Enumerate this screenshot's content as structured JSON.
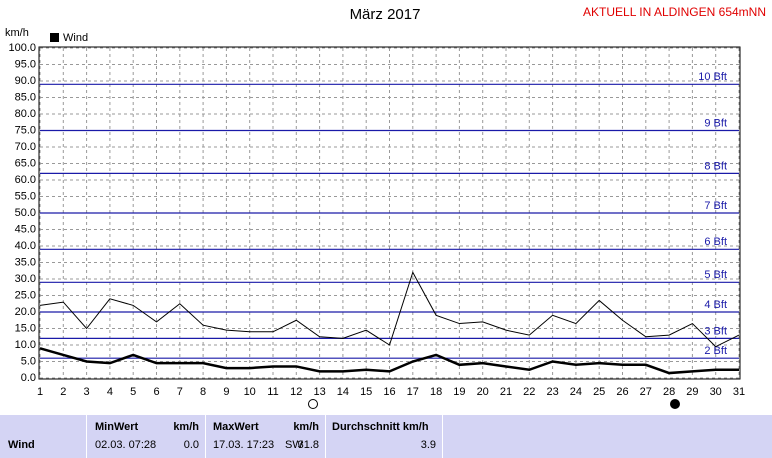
{
  "chart_data": {
    "type": "line",
    "title": "März 2017",
    "subtitle": "AKTUELL IN ALDINGEN 654mNN",
    "y_label": "km/h",
    "x": [
      1,
      2,
      3,
      4,
      5,
      6,
      7,
      8,
      9,
      10,
      11,
      12,
      13,
      14,
      15,
      16,
      17,
      18,
      19,
      20,
      21,
      22,
      23,
      24,
      25,
      26,
      27,
      28,
      29,
      30,
      31
    ],
    "xlim": [
      1,
      31
    ],
    "xticks": [
      1,
      2,
      3,
      4,
      5,
      6,
      7,
      8,
      9,
      10,
      11,
      12,
      13,
      14,
      15,
      16,
      17,
      18,
      19,
      20,
      21,
      22,
      23,
      24,
      25,
      26,
      27,
      28,
      29,
      30,
      31
    ],
    "ylim": [
      0,
      100
    ],
    "yticks": [
      {
        "value": 0,
        "label": "0.0"
      },
      {
        "value": 5,
        "label": "5.0"
      },
      {
        "value": 10,
        "label": "10.0"
      },
      {
        "value": 15,
        "label": "15.0"
      },
      {
        "value": 20,
        "label": "20.0"
      },
      {
        "value": 25,
        "label": "25.0"
      },
      {
        "value": 30,
        "label": "30.0"
      },
      {
        "value": 35,
        "label": "35.0"
      },
      {
        "value": 40,
        "label": "40.0"
      },
      {
        "value": 45,
        "label": "45.0"
      },
      {
        "value": 50,
        "label": "50.0"
      },
      {
        "value": 55,
        "label": "55.0"
      },
      {
        "value": 60,
        "label": "60.0"
      },
      {
        "value": 65,
        "label": "65.0"
      },
      {
        "value": 70,
        "label": "70.0"
      },
      {
        "value": 75,
        "label": "75.0"
      },
      {
        "value": 80,
        "label": "80.0"
      },
      {
        "value": 85,
        "label": "85.0"
      },
      {
        "value": 90,
        "label": "90.0"
      },
      {
        "value": 95,
        "label": "95.0"
      },
      {
        "value": 100,
        "label": "100.0"
      }
    ],
    "grid": true,
    "reference_lines": [
      {
        "value": 6,
        "label": "2 Bft"
      },
      {
        "value": 12,
        "label": "3 Bft"
      },
      {
        "value": 20,
        "label": "4 Bft"
      },
      {
        "value": 29,
        "label": "5 Bft"
      },
      {
        "value": 39,
        "label": "6 Bft"
      },
      {
        "value": 50,
        "label": "7 Bft"
      },
      {
        "value": 62,
        "label": "8 Bft"
      },
      {
        "value": 75,
        "label": "9 Bft"
      },
      {
        "value": 89,
        "label": "10 Bft"
      }
    ],
    "series": [
      {
        "color": "#000000",
        "values": [
          22,
          23,
          15,
          24,
          22,
          17,
          22.5,
          16,
          14.5,
          14,
          14,
          17.5,
          12.5,
          12,
          14.5,
          10,
          32,
          19,
          16.5,
          17,
          14.5,
          13,
          19,
          16.5,
          23.5,
          17.5,
          12.5,
          13,
          16.5,
          9.5,
          13
        ]
      },
      {
        "name": "Wind",
        "color": "#000000",
        "values": [
          9,
          7,
          5,
          4.5,
          7,
          4.5,
          4.5,
          4.5,
          3,
          3,
          3.5,
          3.5,
          2,
          2,
          2.5,
          2,
          5,
          7,
          4,
          4.5,
          3.5,
          2.5,
          5,
          4,
          4.5,
          4,
          4,
          1.5,
          2,
          2.5,
          2.5
        ]
      }
    ]
  },
  "table": {
    "row_label": "Wind",
    "min": {
      "header": "MinWert",
      "unit": "km/h",
      "time": "02.03.  07:28",
      "value": "0.0"
    },
    "max": {
      "header": "MaxWert",
      "unit": "km/h",
      "time": "17.03.  17:23",
      "direction": "SW",
      "value": "31.8"
    },
    "avg": {
      "header": "Durchschnitt km/h",
      "value": "3.9"
    }
  }
}
